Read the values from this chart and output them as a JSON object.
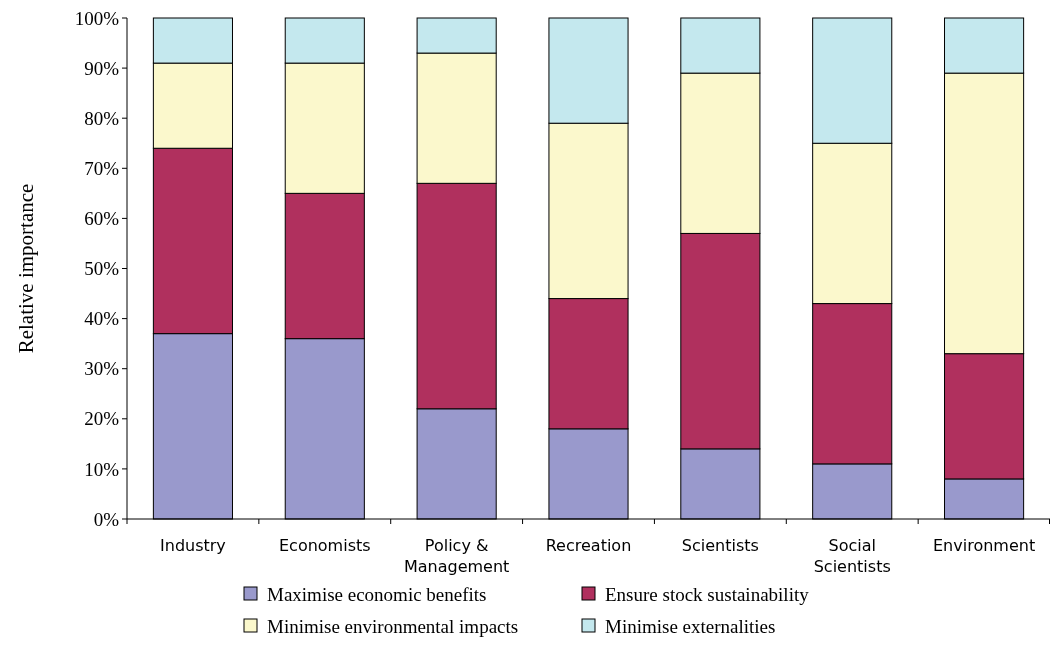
{
  "chart_data": {
    "type": "bar",
    "stacked": true,
    "ylabel": "Relative importance",
    "categories": [
      "Industry",
      "Economists",
      "Policy &\nManagement",
      "Recreation",
      "Scientists",
      "Social\nScientists",
      "Environment"
    ],
    "series": [
      {
        "name": "Maximise economic benefits",
        "color": "#9999cc",
        "values": [
          37,
          36,
          22,
          18,
          14,
          11,
          8
        ]
      },
      {
        "name": "Ensure stock sustainability",
        "color": "#b0305e",
        "values": [
          37,
          29,
          45,
          26,
          43,
          32,
          25
        ]
      },
      {
        "name": "Minimise environmental impacts",
        "color": "#fbf8cc",
        "values": [
          17,
          26,
          26,
          35,
          32,
          32,
          56
        ]
      },
      {
        "name": "Minimise externalities",
        "color": "#c4e8ee",
        "values": [
          9,
          9,
          7,
          21,
          11,
          25,
          11
        ]
      }
    ],
    "ylim": [
      0,
      100
    ],
    "yticks": [
      {
        "value": 0,
        "label": "0%"
      },
      {
        "value": 10,
        "label": "10%"
      },
      {
        "value": 20,
        "label": "20%"
      },
      {
        "value": 30,
        "label": "30%"
      },
      {
        "value": 40,
        "label": "40%"
      },
      {
        "value": 50,
        "label": "50%"
      },
      {
        "value": 60,
        "label": "60%"
      },
      {
        "value": 70,
        "label": "70%"
      },
      {
        "value": 80,
        "label": "80%"
      },
      {
        "value": 90,
        "label": "90%"
      },
      {
        "value": 100,
        "label": "100%"
      }
    ],
    "grid": false,
    "legend": "bottom"
  }
}
